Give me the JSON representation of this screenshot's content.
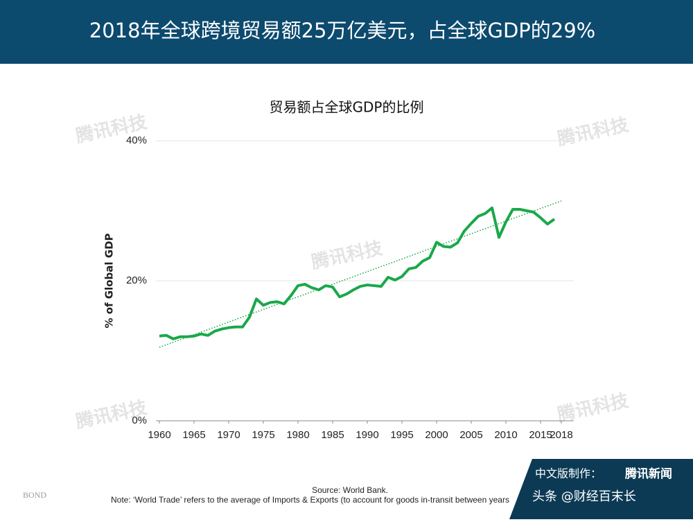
{
  "header": {
    "title": "2018年全球跨境贸易额25万亿美元，占全球GDP的29%"
  },
  "chart_data": {
    "type": "line",
    "title": "贸易额占全球GDP的比例",
    "y_label": "% of Global GDP",
    "x": [
      1960,
      1961,
      1962,
      1963,
      1964,
      1965,
      1966,
      1967,
      1968,
      1969,
      1970,
      1971,
      1972,
      1973,
      1974,
      1975,
      1976,
      1977,
      1978,
      1979,
      1980,
      1981,
      1982,
      1983,
      1984,
      1985,
      1986,
      1987,
      1988,
      1989,
      1990,
      1991,
      1992,
      1993,
      1994,
      1995,
      1996,
      1997,
      1998,
      1999,
      2000,
      2001,
      2002,
      2003,
      2004,
      2005,
      2006,
      2007,
      2008,
      2009,
      2010,
      2011,
      2012,
      2013,
      2014,
      2015,
      2016,
      2017
    ],
    "series": [
      {
        "color": "#1aa84a",
        "values": [
          12.1,
          12.2,
          11.7,
          12.0,
          12.0,
          12.1,
          12.4,
          12.2,
          12.8,
          13.1,
          13.3,
          13.4,
          13.4,
          14.8,
          17.4,
          16.5,
          16.9,
          17.0,
          16.7,
          17.9,
          19.3,
          19.5,
          19.0,
          18.7,
          19.3,
          19.1,
          17.7,
          18.1,
          18.7,
          19.2,
          19.4,
          19.3,
          19.2,
          20.5,
          20.1,
          20.6,
          21.7,
          21.9,
          22.8,
          23.3,
          25.5,
          24.9,
          24.8,
          25.4,
          27.1,
          28.2,
          29.2,
          29.6,
          30.4,
          26.2,
          28.4,
          30.2,
          30.2,
          30.0,
          29.8,
          29.0,
          28.1,
          28.8
        ]
      }
    ],
    "trendline": {
      "color": "#1aa84a",
      "x": [
        1960,
        2018
      ],
      "values": [
        10.5,
        31.4
      ]
    },
    "xlim": [
      1960,
      2018
    ],
    "xticks": [
      1960,
      1965,
      1970,
      1975,
      1980,
      1985,
      1990,
      1995,
      2000,
      2005,
      2010,
      2015,
      2018
    ],
    "ylim": [
      0,
      40
    ],
    "yticks": [
      {
        "value": 0,
        "label": "0%"
      },
      {
        "value": 20,
        "label": "20%"
      },
      {
        "value": 40,
        "label": "40%"
      }
    ],
    "grid": true
  },
  "footer": {
    "source": "Source: World Bank.",
    "note": "Note: ‘World Trade’ refers to the average of Imports & Exports (to account for goods in-transit between years",
    "brand": "BOND"
  },
  "badge": {
    "credit": "中文版制作：",
    "outlet": "腾讯新闻",
    "account": "头条 @财经百末长"
  },
  "watermark": "腾讯科技"
}
